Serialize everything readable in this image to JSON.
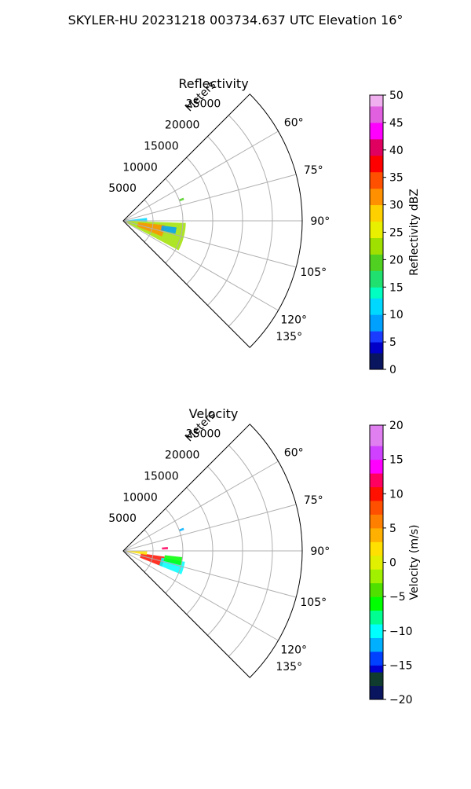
{
  "figure": {
    "suptitle": "SKYLER-HU  20231218  003734.637 UTC Elevation 16°"
  },
  "chart_data": [
    {
      "type": "heatmap",
      "projection": "polar-sector",
      "title": "Reflectivity",
      "radial_label": "Meters",
      "radial_ticks": [
        "5000",
        "10000",
        "15000",
        "20000",
        "25000"
      ],
      "radial_tick_values": [
        5000,
        10000,
        15000,
        20000,
        25000
      ],
      "angle_ticks": [
        "60°",
        "75°",
        "90°",
        "105°",
        "120°",
        "135°"
      ],
      "angle_tick_values": [
        60,
        75,
        90,
        105,
        120,
        135
      ],
      "theta_range_deg": [
        45,
        135
      ],
      "r_range": [
        0,
        30000
      ],
      "grid": true,
      "colorbar": {
        "label": "Reflectivity dBZ",
        "range": [
          0,
          50
        ],
        "ticks": [
          "0",
          "5",
          "10",
          "15",
          "20",
          "25",
          "30",
          "35",
          "40",
          "45",
          "50"
        ],
        "tick_values": [
          0,
          5,
          10,
          15,
          20,
          25,
          30,
          35,
          40,
          45,
          50
        ],
        "colormap": "pyart_HomeyerRainbow-like"
      },
      "echoes": [
        {
          "azimuth_deg": [
            92,
            118
          ],
          "range_m": [
            0,
            10500
          ],
          "value": 22
        },
        {
          "azimuth_deg": [
            96,
            112
          ],
          "range_m": [
            2500,
            7000
          ],
          "value": 30
        },
        {
          "azimuth_deg": [
            83,
            92
          ],
          "range_m": [
            0,
            4000
          ],
          "value": 12
        },
        {
          "azimuth_deg": [
            97,
            104
          ],
          "range_m": [
            6500,
            9000
          ],
          "value": 7
        },
        {
          "azimuth_deg": [
            69,
            71
          ],
          "range_m": [
            10000,
            10800
          ],
          "value": 18
        }
      ]
    },
    {
      "type": "heatmap",
      "projection": "polar-sector",
      "title": "Velocity",
      "radial_label": "Meters",
      "radial_ticks": [
        "5000",
        "10000",
        "15000",
        "20000",
        "25000"
      ],
      "radial_tick_values": [
        5000,
        10000,
        15000,
        20000,
        25000
      ],
      "angle_ticks": [
        "60°",
        "75°",
        "90°",
        "105°",
        "120°",
        "135°"
      ],
      "angle_tick_values": [
        60,
        75,
        90,
        105,
        120,
        135
      ],
      "theta_range_deg": [
        45,
        135
      ],
      "r_range": [
        0,
        30000
      ],
      "grid": true,
      "colorbar": {
        "label": "Velocity (m/s)",
        "range": [
          -20,
          20
        ],
        "ticks": [
          "−20",
          "−15",
          "−10",
          "−5",
          "0",
          "5",
          "10",
          "15",
          "20"
        ],
        "tick_values": [
          -20,
          -15,
          -10,
          -5,
          0,
          5,
          10,
          15,
          20
        ],
        "colormap": "pyart_BuDRd18-like"
      },
      "echoes": [
        {
          "azimuth_deg": [
            98,
            112
          ],
          "range_m": [
            3000,
            7000
          ],
          "value": 10
        },
        {
          "azimuth_deg": [
            100,
            112
          ],
          "range_m": [
            6500,
            10500
          ],
          "value": -11
        },
        {
          "azimuth_deg": [
            90,
            100
          ],
          "range_m": [
            0,
            4000
          ],
          "value": 2
        },
        {
          "azimuth_deg": [
            96,
            104
          ],
          "range_m": [
            7000,
            10000
          ],
          "value": -6
        },
        {
          "azimuth_deg": [
            69,
            71
          ],
          "range_m": [
            10000,
            10800
          ],
          "value": -12
        },
        {
          "azimuth_deg": [
            85,
            88
          ],
          "range_m": [
            6500,
            7500
          ],
          "value": 12
        }
      ]
    }
  ]
}
